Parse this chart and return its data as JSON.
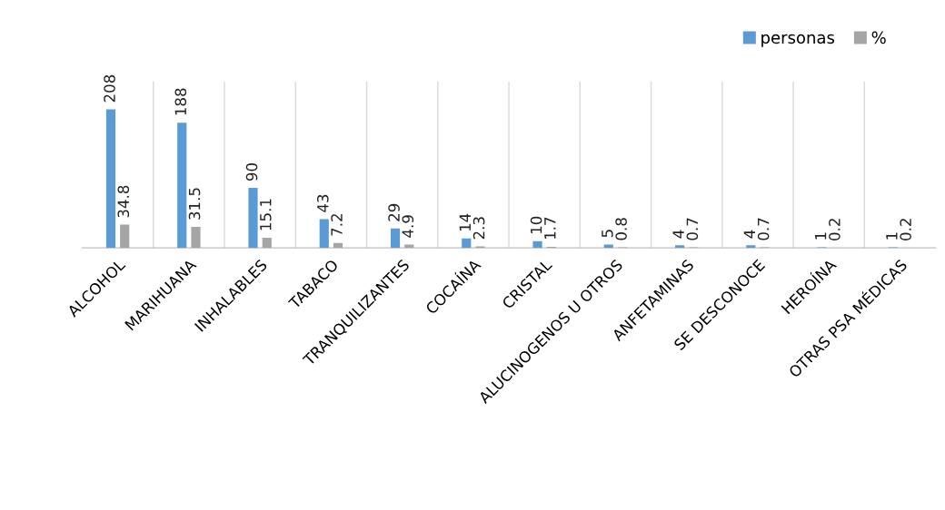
{
  "chart_data": {
    "type": "bar",
    "categories": [
      "ALCOHOL",
      "MARIHUANA",
      "INHALABLES",
      "TABACO",
      "TRANQUILIZANTES",
      "COCAÍNA",
      "CRISTAL",
      "ALUCINOGENOS U OTROS",
      "ANFETAMINAS",
      "SE DESCONOCE",
      "HEROÍNA",
      "OTRAS PSA MÉDICAS"
    ],
    "series": [
      {
        "name": "personas",
        "color": "#5b9bd5",
        "values": [
          208,
          188,
          90,
          43,
          29,
          14,
          10,
          5,
          4,
          4,
          1,
          1
        ]
      },
      {
        "name": "%",
        "color": "#a5a5a5",
        "values": [
          34.8,
          31.5,
          15.1,
          7.2,
          4.9,
          2.3,
          1.7,
          0.8,
          0.7,
          0.7,
          0.2,
          0.2
        ]
      }
    ],
    "data_labels": true,
    "grid": "x",
    "legend": "top right",
    "tick_labels": "x"
  }
}
